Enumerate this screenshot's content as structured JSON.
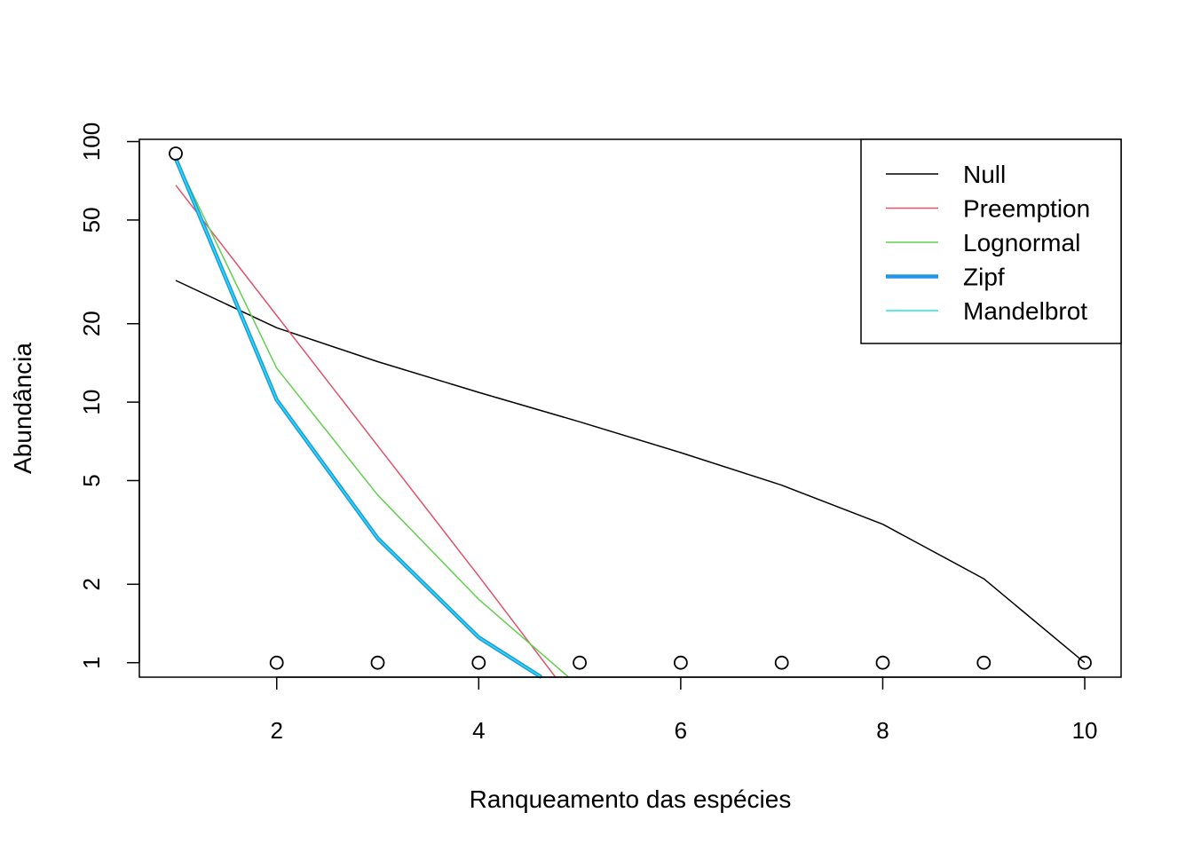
{
  "chart_data": {
    "type": "line",
    "title": "",
    "xlabel": "Ranqueamento das espécies",
    "ylabel": "Abundância",
    "y_scale": "log",
    "xlim": [
      0.64,
      10.36
    ],
    "ylim": [
      0.88,
      102
    ],
    "x_ticks": [
      2,
      4,
      6,
      8,
      10
    ],
    "y_ticks": [
      1,
      2,
      5,
      10,
      20,
      50,
      100
    ],
    "grid": false,
    "legend_position": "top-right",
    "observed": {
      "x": [
        1,
        2,
        3,
        4,
        5,
        6,
        7,
        8,
        9,
        10
      ],
      "y": [
        90,
        1,
        1,
        1,
        1,
        1,
        1,
        1,
        1,
        1
      ]
    },
    "series": [
      {
        "name": "Null",
        "color": "#000000",
        "width": 1.5,
        "x": [
          1,
          2,
          3,
          4,
          5,
          6,
          7,
          8,
          9,
          10
        ],
        "y": [
          29.3,
          19.3,
          14.3,
          10.9,
          8.4,
          6.4,
          4.8,
          3.4,
          2.1,
          1.0
        ]
      },
      {
        "name": "Preemption",
        "color": "#DF536B",
        "width": 1.5,
        "x": [
          1,
          2,
          3,
          4,
          4.76
        ],
        "y": [
          68,
          21.5,
          6.8,
          2.15,
          0.88
        ]
      },
      {
        "name": "Lognormal",
        "color": "#61D04F",
        "width": 1.5,
        "x": [
          1,
          2,
          3,
          4,
          4.89
        ],
        "y": [
          86,
          13.5,
          4.4,
          1.75,
          0.88
        ]
      },
      {
        "name": "Zipf",
        "color": "#2297E6",
        "width": 4.5,
        "x": [
          1,
          2,
          3,
          4,
          4.62
        ],
        "y": [
          86,
          10.2,
          3.0,
          1.25,
          0.88
        ]
      },
      {
        "name": "Mandelbrot",
        "color": "#28E2E5",
        "width": 1.5,
        "x": [
          1,
          2,
          3,
          4,
          4.62
        ],
        "y": [
          86,
          10.2,
          3.0,
          1.25,
          0.88
        ]
      }
    ]
  }
}
